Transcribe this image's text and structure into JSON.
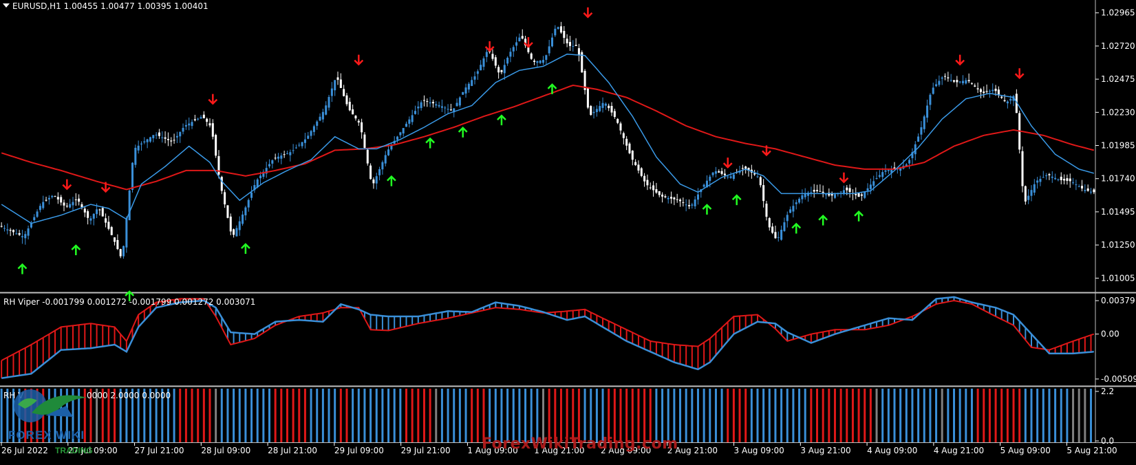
{
  "header": {
    "symbol": "EURUSD,H1",
    "ohlc": "1.00455 1.00477 1.00395 1.00401"
  },
  "indicators": {
    "viper_label": "RH Viper",
    "viper_values": "-0.001799 0.001272 -0.001799 0.001272 0.003071",
    "bars_label": "RH V",
    "bars_values": "0000 2.0000 0.0000"
  },
  "watermark": "ForexWikiTrading.com",
  "logo": {
    "text": "FOREX WIKI",
    "sub": "TRADING"
  },
  "colors": {
    "background": "#000000",
    "bull_candle": "#3a8fd8",
    "bear_candle": "#ffffff",
    "fast_ma": "#3a9ae8",
    "slow_ma": "#e01818",
    "sell_arrow": "#ff1a1a",
    "buy_arrow": "#22ff22",
    "histogram_blue": "#3a8fd8",
    "histogram_red": "#e01818",
    "histogram_gray": "#808080",
    "axis_text": "#ffffff",
    "separator": "#c0c0c0"
  },
  "chart_data": [
    {
      "type": "candlestick",
      "symbol": "EURUSD",
      "timeframe": "H1",
      "y_ticks": [
        "1.02965",
        "1.02720",
        "1.02475",
        "1.02230",
        "1.01985",
        "1.01740",
        "1.01495",
        "1.01250",
        "1.01005"
      ],
      "ylim": [
        1.009,
        1.0306
      ],
      "x_ticks": [
        "26 Jul 2022",
        "27 Jul 09:00",
        "27 Jul 21:00",
        "28 Jul 09:00",
        "28 Jul 21:00",
        "29 Jul 09:00",
        "29 Jul 21:00",
        "1 Aug 09:00",
        "1 Aug 21:00",
        "2 Aug 09:00",
        "2 Aug 21:00",
        "3 Aug 09:00",
        "3 Aug 21:00",
        "4 Aug 09:00",
        "4 Aug 21:00",
        "5 Aug 09:00",
        "5 Aug 21:00"
      ],
      "price_anchors": [
        [
          0,
          1.0139
        ],
        [
          8,
          1.0131
        ],
        [
          14,
          1.0156
        ],
        [
          18,
          1.0162
        ],
        [
          22,
          1.0153
        ],
        [
          26,
          1.0159
        ],
        [
          30,
          1.0143
        ],
        [
          33,
          1.0153
        ],
        [
          38,
          1.013
        ],
        [
          41,
          1.0114
        ],
        [
          45,
          1.0196
        ],
        [
          52,
          1.0207
        ],
        [
          58,
          1.0201
        ],
        [
          62,
          1.0213
        ],
        [
          68,
          1.022
        ],
        [
          71,
          1.0212
        ],
        [
          74,
          1.017
        ],
        [
          78,
          1.013
        ],
        [
          82,
          1.015
        ],
        [
          86,
          1.0172
        ],
        [
          92,
          1.0189
        ],
        [
          98,
          1.0194
        ],
        [
          103,
          1.0204
        ],
        [
          109,
          1.0225
        ],
        [
          113,
          1.025
        ],
        [
          117,
          1.0226
        ],
        [
          121,
          1.0214
        ],
        [
          125,
          1.0168
        ],
        [
          130,
          1.0194
        ],
        [
          136,
          1.0213
        ],
        [
          142,
          1.0232
        ],
        [
          148,
          1.0228
        ],
        [
          152,
          1.0224
        ],
        [
          156,
          1.024
        ],
        [
          160,
          1.0251
        ],
        [
          164,
          1.027
        ],
        [
          168,
          1.025
        ],
        [
          171,
          1.0266
        ],
        [
          175,
          1.028
        ],
        [
          179,
          1.026
        ],
        [
          183,
          1.0262
        ],
        [
          187,
          1.0288
        ],
        [
          191,
          1.0272
        ],
        [
          194,
          1.0272
        ],
        [
          198,
          1.022
        ],
        [
          203,
          1.0231
        ],
        [
          207,
          1.0218
        ],
        [
          212,
          1.019
        ],
        [
          217,
          1.017
        ],
        [
          222,
          1.0161
        ],
        [
          228,
          1.0158
        ],
        [
          232,
          1.0153
        ],
        [
          236,
          1.0168
        ],
        [
          240,
          1.018
        ],
        [
          245,
          1.0175
        ],
        [
          250,
          1.0182
        ],
        [
          255,
          1.0175
        ],
        [
          258,
          1.014
        ],
        [
          261,
          1.0128
        ],
        [
          265,
          1.015
        ],
        [
          270,
          1.0163
        ],
        [
          275,
          1.0165
        ],
        [
          279,
          1.0161
        ],
        [
          284,
          1.0166
        ],
        [
          289,
          1.016
        ],
        [
          293,
          1.0171
        ],
        [
          297,
          1.018
        ],
        [
          301,
          1.0181
        ],
        [
          305,
          1.0185
        ],
        [
          309,
          1.0208
        ],
        [
          313,
          1.024
        ],
        [
          317,
          1.025
        ],
        [
          321,
          1.0245
        ],
        [
          325,
          1.0247
        ],
        [
          330,
          1.0237
        ],
        [
          334,
          1.024
        ],
        [
          338,
          1.023
        ],
        [
          341,
          1.0236
        ],
        [
          344,
          1.0155
        ],
        [
          348,
          1.0172
        ],
        [
          352,
          1.0177
        ],
        [
          356,
          1.0173
        ],
        [
          360,
          1.0172
        ],
        [
          364,
          1.0166
        ],
        [
          367,
          1.0164
        ]
      ],
      "fast_ma_anchors": [
        [
          0,
          1.0155
        ],
        [
          10,
          1.0141
        ],
        [
          20,
          1.0147
        ],
        [
          30,
          1.0155
        ],
        [
          36,
          1.0152
        ],
        [
          42,
          1.0144
        ],
        [
          47,
          1.017
        ],
        [
          55,
          1.0183
        ],
        [
          63,
          1.0198
        ],
        [
          70,
          1.0186
        ],
        [
          74,
          1.0172
        ],
        [
          80,
          1.0158
        ],
        [
          88,
          1.0171
        ],
        [
          96,
          1.018
        ],
        [
          104,
          1.0188
        ],
        [
          112,
          1.0205
        ],
        [
          120,
          1.0196
        ],
        [
          126,
          1.0196
        ],
        [
          134,
          1.0203
        ],
        [
          142,
          1.0212
        ],
        [
          150,
          1.0222
        ],
        [
          158,
          1.0228
        ],
        [
          166,
          1.0245
        ],
        [
          174,
          1.0254
        ],
        [
          182,
          1.0257
        ],
        [
          190,
          1.0266
        ],
        [
          196,
          1.0265
        ],
        [
          204,
          1.0245
        ],
        [
          212,
          1.022
        ],
        [
          220,
          1.019
        ],
        [
          228,
          1.017
        ],
        [
          234,
          1.0164
        ],
        [
          242,
          1.0175
        ],
        [
          250,
          1.0181
        ],
        [
          256,
          1.0176
        ],
        [
          262,
          1.0163
        ],
        [
          270,
          1.0163
        ],
        [
          278,
          1.0163
        ],
        [
          286,
          1.0163
        ],
        [
          292,
          1.0165
        ],
        [
          300,
          1.018
        ],
        [
          308,
          1.0197
        ],
        [
          316,
          1.0218
        ],
        [
          324,
          1.0233
        ],
        [
          332,
          1.0237
        ],
        [
          340,
          1.0234
        ],
        [
          346,
          1.0213
        ],
        [
          354,
          1.0192
        ],
        [
          362,
          1.0181
        ],
        [
          367,
          1.0178
        ]
      ],
      "slow_ma_anchors": [
        [
          0,
          1.0193
        ],
        [
          10,
          1.0186
        ],
        [
          20,
          1.018
        ],
        [
          32,
          1.0172
        ],
        [
          42,
          1.0166
        ],
        [
          52,
          1.0172
        ],
        [
          62,
          1.018
        ],
        [
          72,
          1.018
        ],
        [
          82,
          1.0176
        ],
        [
          92,
          1.018
        ],
        [
          102,
          1.0185
        ],
        [
          112,
          1.0195
        ],
        [
          122,
          1.0196
        ],
        [
          132,
          1.0199
        ],
        [
          142,
          1.0205
        ],
        [
          152,
          1.0212
        ],
        [
          162,
          1.022
        ],
        [
          172,
          1.0227
        ],
        [
          182,
          1.0235
        ],
        [
          192,
          1.0243
        ],
        [
          200,
          1.024
        ],
        [
          210,
          1.0234
        ],
        [
          220,
          1.0224
        ],
        [
          230,
          1.0213
        ],
        [
          240,
          1.0205
        ],
        [
          250,
          1.02
        ],
        [
          260,
          1.0196
        ],
        [
          270,
          1.019
        ],
        [
          280,
          1.0184
        ],
        [
          290,
          1.0181
        ],
        [
          300,
          1.0181
        ],
        [
          310,
          1.0186
        ],
        [
          320,
          1.0198
        ],
        [
          330,
          1.0206
        ],
        [
          340,
          1.021
        ],
        [
          350,
          1.0206
        ],
        [
          360,
          1.0199
        ],
        [
          367,
          1.0195
        ]
      ],
      "sell_arrows": [
        [
          22,
          1.017
        ],
        [
          35,
          1.0168
        ],
        [
          71,
          1.0233
        ],
        [
          120,
          1.0262
        ],
        [
          164,
          1.0272
        ],
        [
          177,
          1.0275
        ],
        [
          197,
          1.0297
        ],
        [
          244,
          1.0186
        ],
        [
          257,
          1.0195
        ],
        [
          283,
          1.0175
        ],
        [
          322,
          1.0262
        ],
        [
          342,
          1.0252
        ]
      ],
      "buy_arrows": [
        [
          7,
          1.0107
        ],
        [
          25,
          1.0121
        ],
        [
          43,
          1.0087
        ],
        [
          82,
          1.0122
        ],
        [
          131,
          1.0172
        ],
        [
          144,
          1.02
        ],
        [
          155,
          1.0208
        ],
        [
          168,
          1.0217
        ],
        [
          185,
          1.024
        ],
        [
          237,
          1.0151
        ],
        [
          247,
          1.0158
        ],
        [
          267,
          1.0137
        ],
        [
          276,
          1.0143
        ],
        [
          288,
          1.0146
        ]
      ]
    },
    {
      "type": "line-histogram",
      "name": "RH Viper",
      "y_ticks": [
        "0.003791",
        "0.00",
        "-0.005094"
      ],
      "ylim": [
        -0.0058,
        0.0045
      ],
      "line_a_anchors": [
        [
          0,
          -0.003
        ],
        [
          10,
          -0.0012
        ],
        [
          20,
          0.0008
        ],
        [
          30,
          0.0012
        ],
        [
          38,
          0.0008
        ],
        [
          42,
          -0.0008
        ],
        [
          46,
          0.0022
        ],
        [
          52,
          0.0036
        ],
        [
          60,
          0.004
        ],
        [
          68,
          0.004
        ],
        [
          72,
          0.002
        ],
        [
          77,
          -0.0012
        ],
        [
          85,
          -0.0005
        ],
        [
          92,
          0.001
        ],
        [
          100,
          0.002
        ],
        [
          108,
          0.0024
        ],
        [
          114,
          0.003
        ],
        [
          120,
          0.003
        ],
        [
          124,
          0.0005
        ],
        [
          130,
          0.0004
        ],
        [
          140,
          0.0012
        ],
        [
          150,
          0.0018
        ],
        [
          158,
          0.0024
        ],
        [
          166,
          0.003
        ],
        [
          174,
          0.0028
        ],
        [
          182,
          0.0024
        ],
        [
          190,
          0.0026
        ],
        [
          196,
          0.0028
        ],
        [
          202,
          0.0018
        ],
        [
          210,
          0.0005
        ],
        [
          218,
          -0.0008
        ],
        [
          226,
          -0.0012
        ],
        [
          234,
          -0.0014
        ],
        [
          238,
          -0.0005
        ],
        [
          246,
          0.002
        ],
        [
          254,
          0.0022
        ],
        [
          260,
          0.0006
        ],
        [
          264,
          -0.0008
        ],
        [
          272,
          0.0
        ],
        [
          280,
          0.0005
        ],
        [
          290,
          0.0005
        ],
        [
          298,
          0.001
        ],
        [
          306,
          0.002
        ],
        [
          314,
          0.0034
        ],
        [
          320,
          0.0038
        ],
        [
          326,
          0.0034
        ],
        [
          334,
          0.002
        ],
        [
          340,
          0.001
        ],
        [
          346,
          -0.0015
        ],
        [
          352,
          -0.0018
        ],
        [
          360,
          -0.0008
        ],
        [
          367,
          0.0
        ]
      ],
      "line_b_anchors": [
        [
          0,
          -0.005
        ],
        [
          10,
          -0.0045
        ],
        [
          20,
          -0.0018
        ],
        [
          30,
          -0.0016
        ],
        [
          38,
          -0.0012
        ],
        [
          42,
          -0.002
        ],
        [
          46,
          0.0008
        ],
        [
          52,
          0.003
        ],
        [
          60,
          0.0036
        ],
        [
          68,
          0.0038
        ],
        [
          72,
          0.003
        ],
        [
          77,
          0.0002
        ],
        [
          85,
          0.0
        ],
        [
          92,
          0.0014
        ],
        [
          100,
          0.0016
        ],
        [
          108,
          0.0014
        ],
        [
          114,
          0.0034
        ],
        [
          120,
          0.0028
        ],
        [
          124,
          0.0022
        ],
        [
          130,
          0.002
        ],
        [
          140,
          0.002
        ],
        [
          150,
          0.0026
        ],
        [
          158,
          0.0025
        ],
        [
          166,
          0.0036
        ],
        [
          174,
          0.0032
        ],
        [
          182,
          0.0025
        ],
        [
          190,
          0.0016
        ],
        [
          196,
          0.002
        ],
        [
          202,
          0.0008
        ],
        [
          210,
          -0.0008
        ],
        [
          218,
          -0.002
        ],
        [
          226,
          -0.0032
        ],
        [
          234,
          -0.004
        ],
        [
          238,
          -0.0032
        ],
        [
          246,
          0.0
        ],
        [
          254,
          0.0014
        ],
        [
          260,
          0.0012
        ],
        [
          264,
          0.0002
        ],
        [
          272,
          -0.001
        ],
        [
          280,
          0.0
        ],
        [
          290,
          0.001
        ],
        [
          298,
          0.0018
        ],
        [
          306,
          0.0016
        ],
        [
          314,
          0.004
        ],
        [
          320,
          0.0042
        ],
        [
          326,
          0.0036
        ],
        [
          334,
          0.003
        ],
        [
          340,
          0.0022
        ],
        [
          346,
          0.0
        ],
        [
          352,
          -0.0022
        ],
        [
          360,
          -0.0022
        ],
        [
          367,
          -0.002
        ]
      ]
    },
    {
      "type": "histogram",
      "name": "RH V",
      "y_ticks": [
        "2.2",
        "0.0"
      ],
      "ylim": [
        0,
        2.2
      ],
      "bar_colors_pattern": "bbbbrrrrbbbbbbrrgrrrbbbbbbbbbbrrrrrrgbbbbbbbbbrrrrrrbbbbbrrbbbbbbbbbrrrrrgbbbbbrrrbbbbbbbbbgrrrrrrbbbbrrrrrrrrbbbbbbbbbbbbrrrrbbbbbbbbbbrrrrrrrrrrrgbbbbbbbbbbgbbbbbrrrrrrrrbbbbbbbbgggbbbbrrrrrbbbbbbbbbgbbbbrrrrrrrrrbbbbbbbbbbbbbbbbrrrrrrrgbbrrrrrrrgggbbbbbbrrrbbbbbrrrrrrrbbbbbbbbbbrrrrrggrrrrrrrrrrbbbbbbbbbbbbbbrrrrrbbbbbbrrrrrrrrrrrrggbbbbbbrrrrrrrrbb"
    }
  ]
}
